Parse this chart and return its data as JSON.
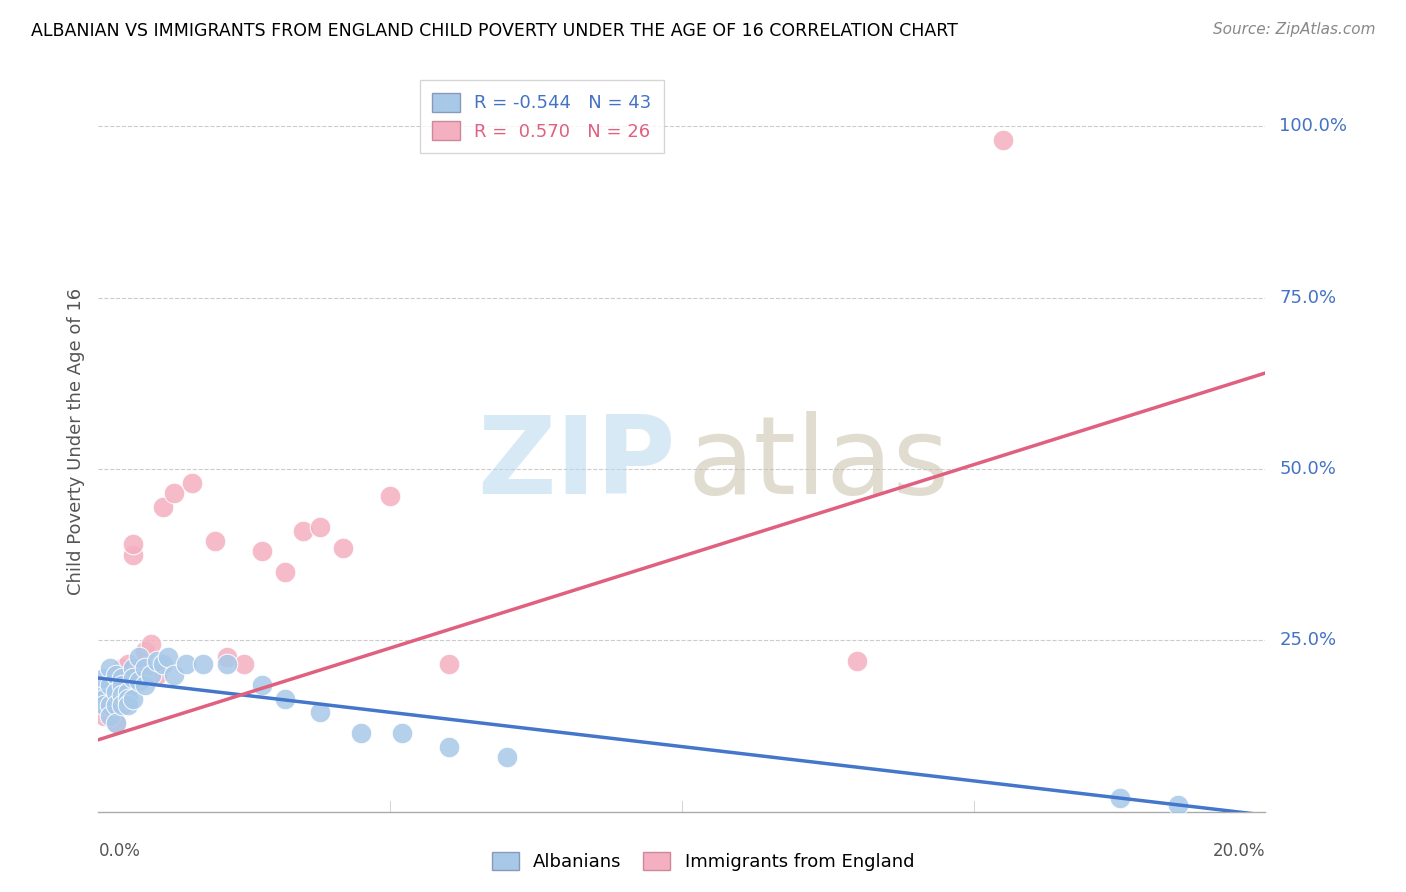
{
  "title": "ALBANIAN VS IMMIGRANTS FROM ENGLAND CHILD POVERTY UNDER THE AGE OF 16 CORRELATION CHART",
  "source": "Source: ZipAtlas.com",
  "ylabel": "Child Poverty Under the Age of 16",
  "watermark_zip": "ZIP",
  "watermark_atlas": "atlas",
  "legend_label1": "Albanians",
  "legend_label2": "Immigrants from England",
  "albanians_color": "#a8c8e8",
  "england_color": "#f4b0c0",
  "albanians_line_color": "#4477cc",
  "england_line_color": "#e06080",
  "ytick_labels": [
    "100.0%",
    "75.0%",
    "50.0%",
    "25.0%"
  ],
  "ytick_values": [
    1.0,
    0.75,
    0.5,
    0.25
  ],
  "xlim": [
    0.0,
    0.2
  ],
  "ylim": [
    0.0,
    1.08
  ],
  "albanians_x": [
    0.0005,
    0.001,
    0.001,
    0.001,
    0.002,
    0.002,
    0.002,
    0.002,
    0.003,
    0.003,
    0.003,
    0.003,
    0.004,
    0.004,
    0.004,
    0.004,
    0.005,
    0.005,
    0.005,
    0.006,
    0.006,
    0.006,
    0.007,
    0.007,
    0.008,
    0.008,
    0.009,
    0.01,
    0.011,
    0.012,
    0.013,
    0.015,
    0.018,
    0.022,
    0.028,
    0.032,
    0.038,
    0.045,
    0.052,
    0.06,
    0.07,
    0.175,
    0.185
  ],
  "albanians_y": [
    0.175,
    0.195,
    0.165,
    0.155,
    0.21,
    0.185,
    0.155,
    0.14,
    0.2,
    0.175,
    0.155,
    0.13,
    0.195,
    0.185,
    0.17,
    0.155,
    0.175,
    0.165,
    0.155,
    0.21,
    0.195,
    0.165,
    0.225,
    0.19,
    0.21,
    0.185,
    0.2,
    0.22,
    0.215,
    0.225,
    0.2,
    0.215,
    0.215,
    0.215,
    0.185,
    0.165,
    0.145,
    0.115,
    0.115,
    0.095,
    0.08,
    0.02,
    0.01
  ],
  "england_x": [
    0.001,
    0.002,
    0.003,
    0.004,
    0.005,
    0.006,
    0.006,
    0.007,
    0.008,
    0.009,
    0.01,
    0.011,
    0.013,
    0.016,
    0.02,
    0.022,
    0.025,
    0.028,
    0.032,
    0.035,
    0.038,
    0.042,
    0.05,
    0.06,
    0.13,
    0.155
  ],
  "england_y": [
    0.14,
    0.155,
    0.13,
    0.21,
    0.215,
    0.375,
    0.39,
    0.21,
    0.235,
    0.245,
    0.2,
    0.445,
    0.465,
    0.48,
    0.395,
    0.225,
    0.215,
    0.38,
    0.35,
    0.41,
    0.415,
    0.385,
    0.46,
    0.215,
    0.22,
    0.98
  ],
  "alb_trend_x": [
    0.0,
    0.2
  ],
  "alb_trend_y": [
    0.195,
    -0.005
  ],
  "eng_trend_x": [
    0.0,
    0.2
  ],
  "eng_trend_y": [
    0.105,
    0.64
  ]
}
